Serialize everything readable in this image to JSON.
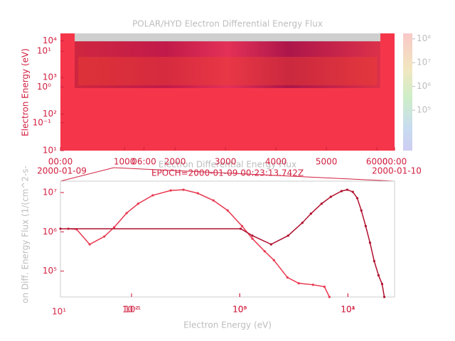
{
  "chart_data": [
    {
      "type": "spectrogram",
      "title": "POLAR/HYD  Electron Differential Energy Flux",
      "ylabel": "Electron Energy (eV)",
      "log_y": true,
      "ylim": [
        10,
        16000
      ],
      "yticks": [
        {
          "value": 10,
          "label": "10¹"
        },
        {
          "value": 100,
          "label": "10²"
        },
        {
          "value": 1000,
          "label": "10³"
        },
        {
          "value": 10000,
          "label": "10⁴"
        }
      ],
      "y2lim": [
        0.0166,
        31.6
      ],
      "y2ticks": [
        {
          "value": 0.1,
          "label": "10⁻¹"
        },
        {
          "value": 1,
          "label": "10⁰"
        },
        {
          "value": 10,
          "label": "10¹"
        }
      ],
      "xlim": [
        0,
        24
      ],
      "xticks": [
        {
          "value": 0,
          "label": "00:00"
        },
        {
          "value": 6,
          "label": "06:00"
        },
        {
          "value": 24,
          "label": "00:00"
        }
      ],
      "date_labels": [
        "2000-01-09",
        "2000-01-10"
      ],
      "x2lim": [
        -270,
        6350
      ],
      "x2ticks": [
        1000,
        2000,
        3000,
        4000,
        5000,
        6000
      ],
      "colorbar_lim": [
        2000,
        170000000
      ],
      "colorbar_ticks": [
        {
          "value": 100000,
          "label": "10⁵"
        },
        {
          "value": 1000000,
          "label": "10⁶"
        },
        {
          "value": 10000000,
          "label": "10⁷"
        },
        {
          "value": 100000000,
          "label": "10⁸"
        }
      ]
    },
    {
      "type": "line",
      "title": "Electron Differential Energy Flux",
      "subtitle": "EPOCH=2000-01-09 00:23:13.742Z",
      "xlabel": "Electron Energy (eV)",
      "ylabel": "on Diff. Energy Flux (1/(cm^2-s-",
      "log_x": true,
      "log_y": true,
      "xlim": [
        22,
        27000
      ],
      "xticks": [
        {
          "value": 100,
          "label": "10²"
        },
        {
          "value": 1000,
          "label": "10³"
        },
        {
          "value": 10000,
          "label": "10⁴"
        }
      ],
      "x2lim": [
        0.022,
        27
      ],
      "x2ticks": [
        {
          "value": 0.1,
          "label": "10⁻¹"
        },
        {
          "value": 1,
          "label": "10⁰"
        },
        {
          "value": 10,
          "label": "10¹"
        }
      ],
      "corner_label": "10¹",
      "ylim": [
        22000,
        19500000
      ],
      "yticks": [
        {
          "value": 100000,
          "label": "10⁵"
        },
        {
          "value": 1000000,
          "label": "10⁶"
        },
        {
          "value": 10000000,
          "label": "10⁷"
        }
      ],
      "series": [
        {
          "color": "#e8384f",
          "x": [
            26,
            31,
            41,
            56,
            69,
            90,
            115,
            157,
            230,
            302,
            409,
            571,
            773,
            1050,
            1310,
            1700,
            2070,
            2760,
            3510,
            4760,
            6070,
            6750
          ],
          "values": [
            1200000,
            1160000,
            480000,
            760000,
            1300000,
            3000000,
            5200000,
            8500000,
            11300000,
            11800000,
            9600000,
            6300000,
            3500000,
            1400000,
            670000,
            320000,
            190000,
            69000,
            49000,
            45000,
            40000,
            22000
          ]
        },
        {
          "color": "#b0102e",
          "x": [
            22,
            1020,
            1310,
            1950,
            2800,
            3790,
            4550,
            5710,
            6950,
            8730,
            9850,
            11100,
            12200,
            13300,
            14600,
            16000,
            17500,
            19200,
            20700,
            21700
          ],
          "values": [
            1200000,
            1200000,
            800000,
            480000,
            800000,
            1700000,
            2900000,
            5200000,
            7800000,
            10900000,
            11800000,
            10400000,
            7200000,
            3500000,
            1400000,
            530000,
            180000,
            78000,
            47000,
            22000
          ]
        }
      ]
    }
  ]
}
